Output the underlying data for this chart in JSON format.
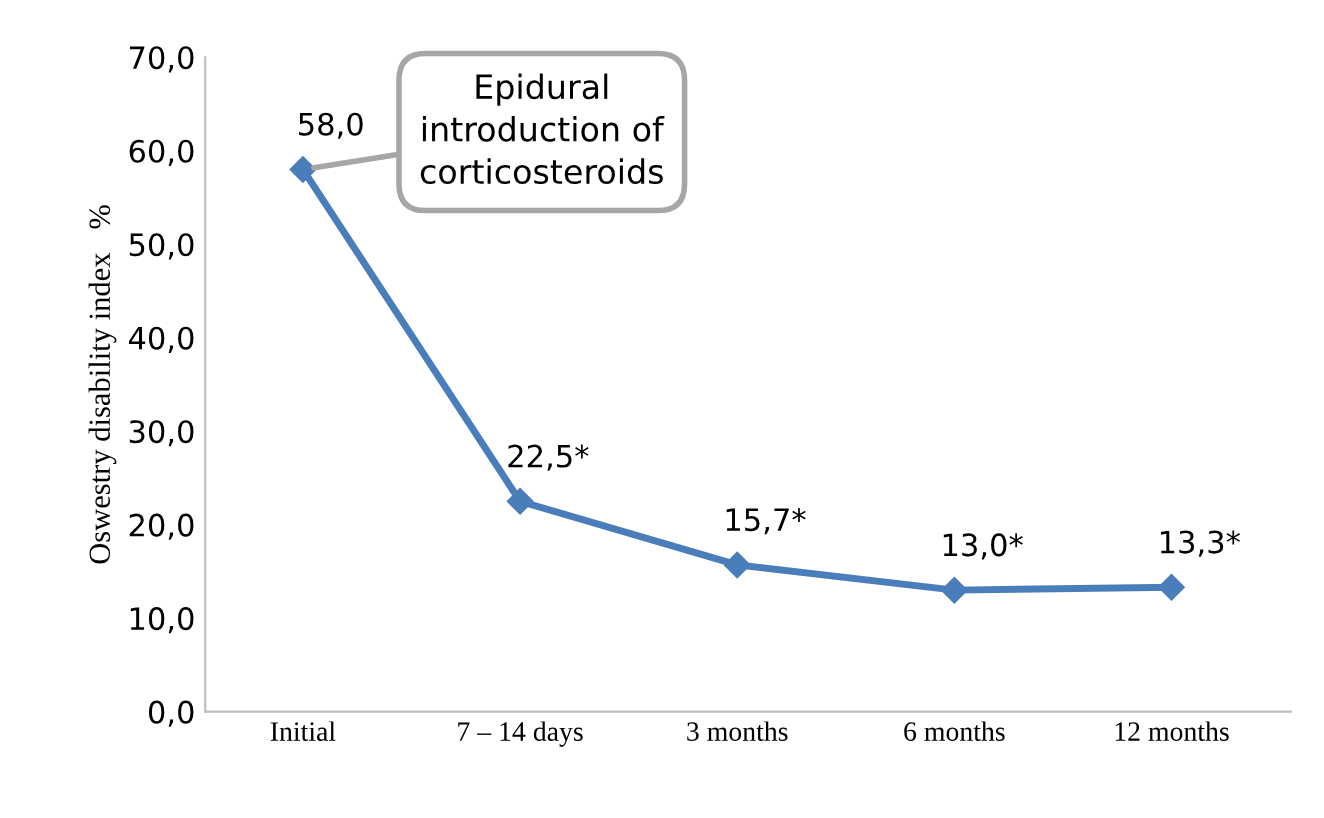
{
  "chart_data": {
    "type": "line",
    "ylabel": "Oswestry disability index   %",
    "categories": [
      "Initial",
      "7 – 14 days",
      "3 months",
      "6 months",
      "12 months"
    ],
    "series": [
      {
        "color": "#4a7ebb",
        "values": [
          58.0,
          22.5,
          15.7,
          13.0,
          13.3
        ],
        "value_labels": [
          "58,0",
          "22,5*",
          "15,7*",
          "13,0*",
          "13,3*"
        ]
      }
    ],
    "ylim": [
      0,
      70
    ],
    "yticks": [
      {
        "value": 0,
        "label": "0,0"
      },
      {
        "value": 10,
        "label": "10,0"
      },
      {
        "value": 20,
        "label": "20,0"
      },
      {
        "value": 30,
        "label": "30,0"
      },
      {
        "value": 40,
        "label": "40,0"
      },
      {
        "value": 50,
        "label": "50,0"
      },
      {
        "value": 60,
        "label": "60,0"
      },
      {
        "value": 70,
        "label": "70,0"
      }
    ],
    "annotations": [
      {
        "text": "Epidural\nintroduction of\ncorticosteroids",
        "x": "Initial",
        "y": 58.0
      }
    ],
    "grid": false,
    "marker": "diamond",
    "line_style": "solid"
  }
}
